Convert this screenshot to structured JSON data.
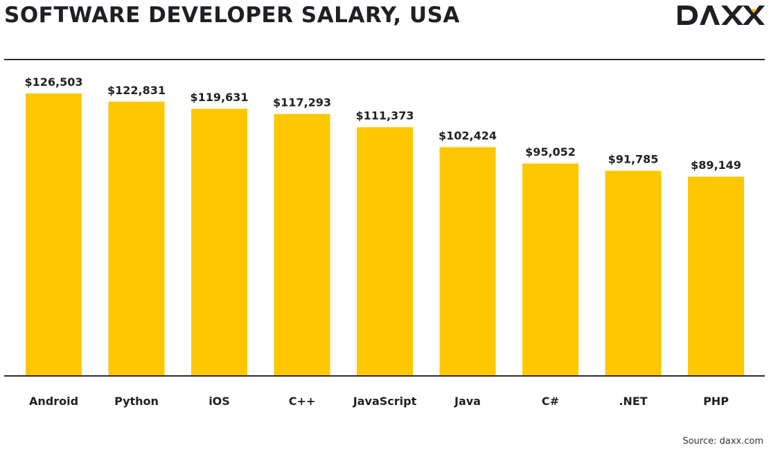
{
  "header": {
    "title": "SOFTWARE DEVELOPER SALARY, USA",
    "logo_text": "DAXX"
  },
  "footer": {
    "source": "Source: daxx.com"
  },
  "colors": {
    "bar": "#FFC700",
    "text": "#1F1F24",
    "axis": "#2A2A2E"
  },
  "chart_data": {
    "type": "bar",
    "categories": [
      "Android",
      "Python",
      "iOS",
      "C++",
      "JavaScript",
      "Java",
      "C#",
      ".NET",
      "PHP"
    ],
    "values": [
      126503,
      122831,
      119631,
      117293,
      111373,
      102424,
      95052,
      91785,
      89149
    ],
    "value_labels": [
      "$126,503",
      "$122,831",
      "$119,631",
      "$117,293",
      "$111,373",
      "$102,424",
      "$95,052",
      "$91,785",
      "$89,149"
    ],
    "ylim": [
      0,
      126503
    ],
    "grid": false,
    "legend": "none"
  }
}
